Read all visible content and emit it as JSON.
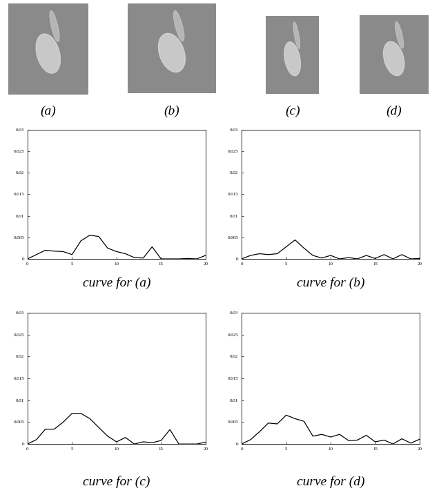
{
  "images": [
    {
      "caption": "(a)"
    },
    {
      "caption": "(b)"
    },
    {
      "caption": "(c)"
    },
    {
      "caption": "(d)"
    }
  ],
  "chart_data": [
    {
      "type": "line",
      "caption": "curve for (a)",
      "x": [
        0,
        1,
        2,
        3,
        4,
        5,
        6,
        7,
        8,
        9,
        10,
        11,
        12,
        13,
        14,
        15,
        16,
        17,
        18,
        19,
        20
      ],
      "values": [
        0,
        0.001,
        0.002,
        0.0018,
        0.0017,
        0.001,
        0.0042,
        0.0055,
        0.0052,
        0.0025,
        0.0017,
        0.0012,
        0.0003,
        0.0002,
        0.0028,
        0,
        0,
        0,
        0.0001,
        0,
        0.0008
      ],
      "xlim": [
        0,
        20
      ],
      "ylim": [
        0,
        0.03
      ],
      "xticks": [
        0,
        5,
        10,
        15,
        20
      ],
      "yticks": [
        0,
        0.005,
        0.01,
        0.015,
        0.02,
        0.025,
        0.03
      ],
      "color": "#000000"
    },
    {
      "type": "line",
      "caption": "curve for (b)",
      "x": [
        0,
        1,
        2,
        3,
        4,
        5,
        6,
        7,
        8,
        9,
        10,
        11,
        12,
        13,
        14,
        15,
        16,
        17,
        18,
        19,
        20
      ],
      "values": [
        0,
        0.0008,
        0.0012,
        0.001,
        0.0012,
        0.0028,
        0.0044,
        0.0025,
        0.0008,
        0.0002,
        0.0008,
        0,
        0.0003,
        0,
        0.0008,
        0.0001,
        0.001,
        0,
        0.001,
        0,
        0.0001
      ],
      "xlim": [
        0,
        20
      ],
      "ylim": [
        0,
        0.03
      ],
      "xticks": [
        0,
        5,
        10,
        15,
        20
      ],
      "yticks": [
        0,
        0.005,
        0.01,
        0.015,
        0.02,
        0.025,
        0.03
      ],
      "color": "#000000"
    },
    {
      "type": "line",
      "caption": "curve for (c)",
      "x": [
        0,
        1,
        2,
        3,
        4,
        5,
        6,
        7,
        8,
        9,
        10,
        11,
        12,
        13,
        14,
        15,
        16,
        17,
        18,
        19,
        20
      ],
      "values": [
        0,
        0.001,
        0.0034,
        0.0034,
        0.005,
        0.007,
        0.007,
        0.0058,
        0.0038,
        0.0018,
        0.0005,
        0.0015,
        0,
        0.0005,
        0.0003,
        0.0008,
        0.0033,
        0,
        0,
        0,
        0.0004
      ],
      "xlim": [
        0,
        20
      ],
      "ylim": [
        0,
        0.03
      ],
      "xticks": [
        0,
        5,
        10,
        15,
        20
      ],
      "yticks": [
        0,
        0.005,
        0.01,
        0.015,
        0.02,
        0.025,
        0.03
      ],
      "color": "#000000"
    },
    {
      "type": "line",
      "caption": "curve for (d)",
      "x": [
        0,
        1,
        2,
        3,
        4,
        5,
        6,
        7,
        8,
        9,
        10,
        11,
        12,
        13,
        14,
        15,
        16,
        17,
        18,
        19,
        20
      ],
      "values": [
        0,
        0.001,
        0.0028,
        0.0048,
        0.0046,
        0.0066,
        0.0058,
        0.0052,
        0.0018,
        0.0022,
        0.0016,
        0.0022,
        0.0008,
        0.0009,
        0.002,
        0.0005,
        0.0009,
        0,
        0.0012,
        0.0002,
        0.0011
      ],
      "xlim": [
        0,
        20
      ],
      "ylim": [
        0,
        0.03
      ],
      "xticks": [
        0,
        5,
        10,
        15,
        20
      ],
      "yticks": [
        0,
        0.005,
        0.01,
        0.015,
        0.02,
        0.025,
        0.03
      ],
      "color": "#000000"
    }
  ]
}
